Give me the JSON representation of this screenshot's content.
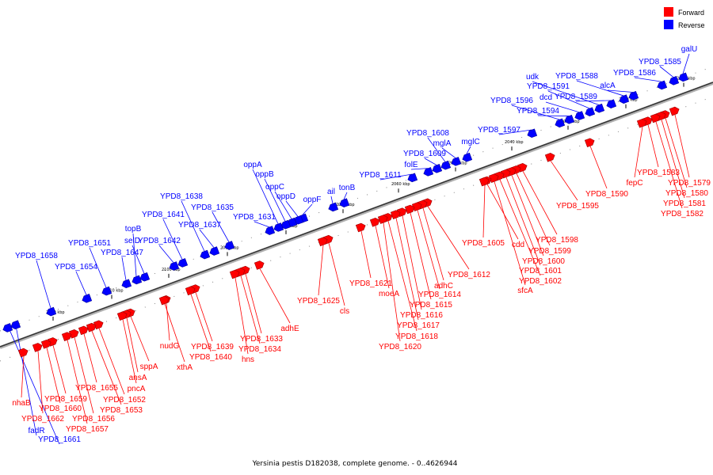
{
  "legend": {
    "forward_label": "Forward",
    "reverse_label": "Reverse",
    "forward_color": "#ff0000",
    "reverse_color": "#0000ff"
  },
  "caption": "Yersinia pestis D182038, complete genome. - 0..4626944",
  "scale_ticks": [
    "2010 kbp",
    "2020 kbp",
    "2030 kbp",
    "2040 kbp",
    "2050 kbp",
    "2060 kbp",
    "2070 kbp",
    "2080 kbp",
    "2090 kbp",
    "2100 kbp",
    "2110 kbp",
    "2120 kbp"
  ],
  "reverse_genes": [
    "galU",
    "YPD8_1585",
    "YPD8_1586",
    "alcA",
    "YPD8_1588",
    "YPD8_1589",
    "udk",
    "YPD8_1591",
    "dcd",
    "YPD8_1594",
    "YPD8_1596",
    "YPD8_1597",
    "mglC",
    "mglA",
    "YPD8_1608",
    "YPD8_1609",
    "folE",
    "YPD8_1611",
    "tonB",
    "ail",
    "oppF",
    "oppD",
    "oppC",
    "oppB",
    "oppA",
    "YPD8_1631",
    "YPD8_1635",
    "YPD8_1637",
    "YPD8_1638",
    "YPD8_1641",
    "YPD8_1642",
    "selD",
    "topB",
    "YPD8_1647",
    "YPD8_1651",
    "YPD8_1654",
    "YPD8_1658",
    "fadR",
    "YPD8_1661"
  ],
  "forward_genes": [
    "YPD8_1579",
    "YPD8_1580",
    "YPD8_1581",
    "YPD8_1582",
    "YPD8_1583",
    "fepC",
    "YPD8_1590",
    "YPD8_1595",
    "YPD8_1598",
    "YPD8_1599",
    "YPD8_1600",
    "YPD8_1601",
    "YPD8_1602",
    "sfcA",
    "cdd",
    "YPD8_1605",
    "YPD8_1612",
    "adhC",
    "YPD8_1614",
    "YPD8_1615",
    "YPD8_1616",
    "YPD8_1617",
    "YPD8_1618",
    "YPD8_1620",
    "moeA",
    "YPD8_1621",
    "cls",
    "YPD8_1625",
    "adhE",
    "YPD8_1633",
    "YPD8_1634",
    "hns",
    "YPD8_1639",
    "YPD8_1640",
    "nudG",
    "xthA",
    "sppA",
    "ansA",
    "pncA",
    "YPD8_1652",
    "YPD8_1653",
    "YPD8_1655",
    "YPD8_1656",
    "YPD8_1657",
    "YPD8_1659",
    "YPD8_1660",
    "YPD8_1662",
    "nhaB"
  ]
}
